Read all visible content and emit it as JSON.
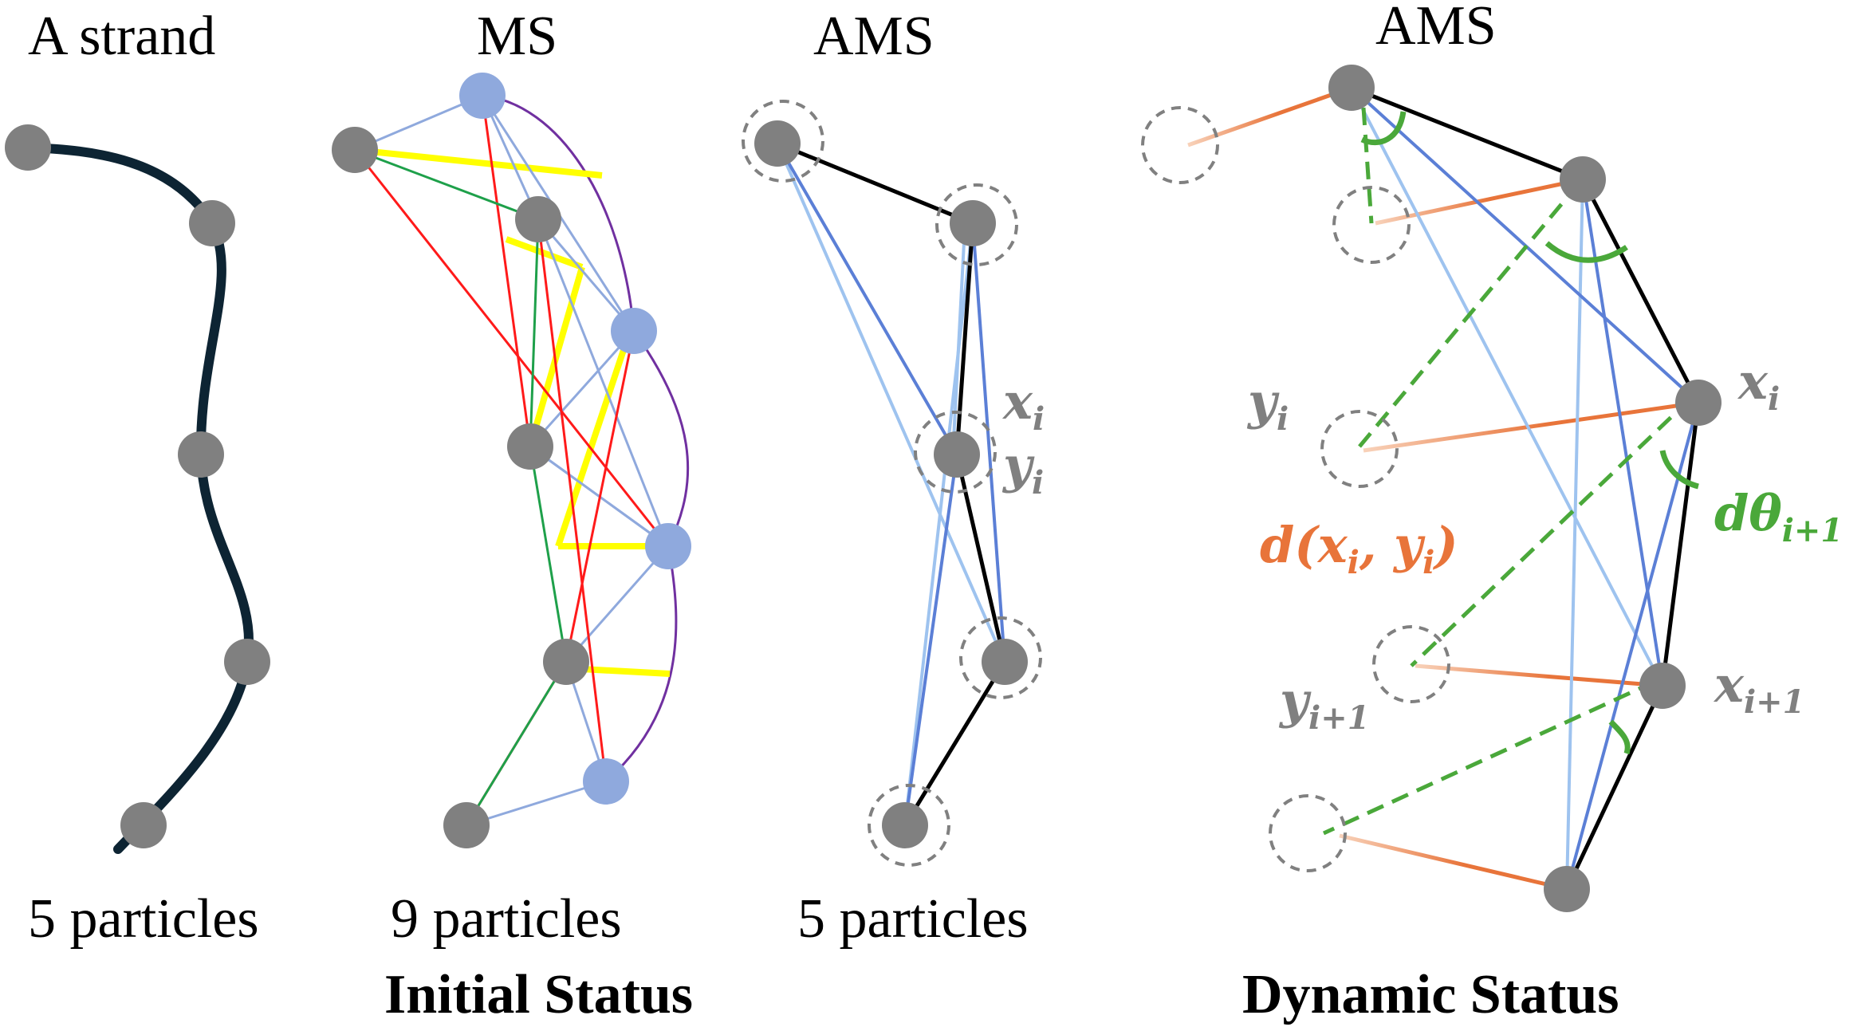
{
  "panels": {
    "strand": {
      "title": "A strand",
      "count": "5 particles"
    },
    "ms": {
      "title": "MS",
      "count": "9 particles"
    },
    "ams_initial": {
      "title": "AMS",
      "count": "5 particles"
    },
    "ams_dynamic": {
      "title": "AMS"
    }
  },
  "status": {
    "initial": "Initial Status",
    "dynamic": "Dynamic Status"
  },
  "math_labels": {
    "xi": {
      "base": "x",
      "sub": "i"
    },
    "yi": {
      "base": "y",
      "sub": "i"
    },
    "xi1": {
      "base": "x",
      "sub": "i+1"
    },
    "yi1": {
      "base": "y",
      "sub": "i+1"
    },
    "dist": {
      "open": "d(",
      "x": "x",
      "xsub": "i",
      "comma": ", ",
      "y": "y",
      "ysub": "i",
      "close": ")"
    },
    "angle": {
      "base": "dθ",
      "sub": "i+1"
    }
  },
  "colors": {
    "particle": "#808080",
    "strand": "#0d2433",
    "ms_blue": "#8fa9dd",
    "edge_black": "#000000",
    "edge_blue": "#5b7fd6",
    "edge_lightblue": "#9ec3ef",
    "edge_yellow": "#ffff00",
    "edge_red": "#ff1a1a",
    "edge_green": "#1ea04a",
    "edge_purple": "#7030a0",
    "distance_orange": "#e8743a",
    "angle_green": "#4aa83a"
  }
}
